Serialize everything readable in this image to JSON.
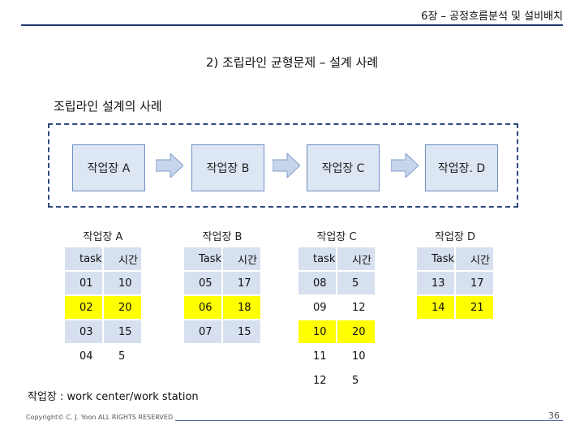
{
  "header": {
    "chapter_title": "6장 – 공정흐름분석 및 설비배치"
  },
  "subtitle": "2) 조립라인 균형문제 – 설계 사례",
  "section_label": "조립라인 설계의 사례",
  "stations": [
    "작업장 A",
    "작업장 B",
    "작업장 C",
    "작업장. D"
  ],
  "tables": [
    {
      "title": "작업장 A",
      "headers": [
        "task",
        "시간"
      ],
      "rows": [
        [
          "01",
          "10"
        ],
        [
          "02",
          "20"
        ],
        [
          "03",
          "15"
        ],
        [
          "04",
          "5"
        ]
      ],
      "row_colors": [
        "blue",
        "yellow",
        "blue",
        "white"
      ]
    },
    {
      "title": "작업장 B",
      "headers": [
        "Task",
        "시간"
      ],
      "rows": [
        [
          "05",
          "17"
        ],
        [
          "06",
          "18"
        ],
        [
          "07",
          "15"
        ]
      ],
      "row_colors": [
        "blue",
        "yellow",
        "blue"
      ]
    },
    {
      "title": "작업장 C",
      "headers": [
        "task",
        "시간"
      ],
      "rows": [
        [
          "08",
          "5"
        ],
        [
          "09",
          "12"
        ],
        [
          "10",
          "20"
        ],
        [
          "11",
          "10"
        ],
        [
          "12",
          "5"
        ]
      ],
      "row_colors": [
        "blue",
        "white",
        "yellow",
        "white",
        "white"
      ]
    },
    {
      "title": "작업장 D",
      "headers": [
        "Task",
        "시간"
      ],
      "rows": [
        [
          "13",
          "17"
        ],
        [
          "14",
          "21"
        ]
      ],
      "row_colors": [
        "blue",
        "yellow"
      ]
    }
  ],
  "footnote": "작업장 : work center/work station",
  "footer": {
    "copyright": "Copyright© C. J. Yoon ALL RIGHTS RESERVED",
    "page_number": "36"
  },
  "colors": {
    "header_fill": "#d6e0ef",
    "highlight": "#ffff00",
    "rule": "#2a3a7a",
    "arrow_fill": "#c7d5ea"
  }
}
